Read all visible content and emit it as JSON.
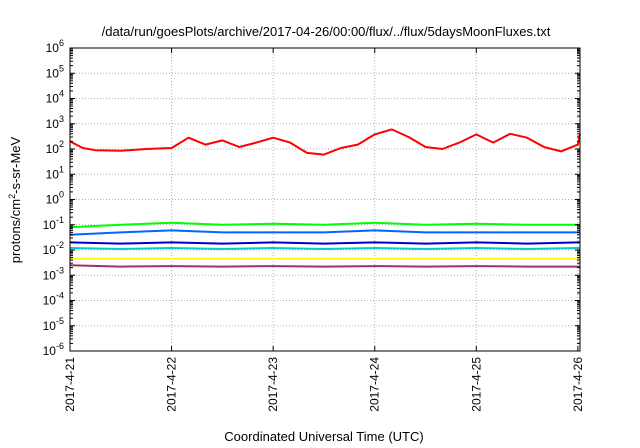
{
  "chart_data": {
    "type": "line",
    "title": "/data/run/goesPlots/archive/2017-04-26/00:00/flux/../flux/5daysMoonFluxes.txt",
    "xlabel": "Coordinated Universal Time (UTC)",
    "ylabel": {
      "prefix": "protons/cm",
      "superscript": "2",
      "suffix": "-s-sr-MeV"
    },
    "x_scale": "time",
    "xlim": [
      "2017-04-21",
      "2017-04-26 00:30"
    ],
    "x_ticks": [
      "2017-4-21",
      "2017-4-22",
      "2017-4-23",
      "2017-4-24",
      "2017-4-25",
      "2017-4-26"
    ],
    "y_scale": "log",
    "ylim": [
      1e-06,
      1000000.0
    ],
    "y_ticks": [
      {
        "base": "10",
        "exp": "-6"
      },
      {
        "base": "10",
        "exp": "-5"
      },
      {
        "base": "10",
        "exp": "-4"
      },
      {
        "base": "10",
        "exp": "-3"
      },
      {
        "base": "10",
        "exp": "-2"
      },
      {
        "base": "10",
        "exp": "-1"
      },
      {
        "base": "10",
        "exp": "0"
      },
      {
        "base": "10",
        "exp": "1"
      },
      {
        "base": "10",
        "exp": "2"
      },
      {
        "base": "10",
        "exp": "3"
      },
      {
        "base": "10",
        "exp": "4"
      },
      {
        "base": "10",
        "exp": "5"
      },
      {
        "base": "10",
        "exp": "6"
      }
    ],
    "grid": true,
    "series": [
      {
        "color": "#ff0000",
        "x": [
          "2017-04-21 00:00",
          "2017-04-21 03:00",
          "2017-04-21 06:00",
          "2017-04-21 12:00",
          "2017-04-21 18:00",
          "2017-04-22 00:00",
          "2017-04-22 04:00",
          "2017-04-22 08:00",
          "2017-04-22 12:00",
          "2017-04-22 16:00",
          "2017-04-22 20:00",
          "2017-04-23 00:00",
          "2017-04-23 04:00",
          "2017-04-23 08:00",
          "2017-04-23 12:00",
          "2017-04-23 16:00",
          "2017-04-23 20:00",
          "2017-04-24 00:00",
          "2017-04-24 04:00",
          "2017-04-24 08:00",
          "2017-04-24 12:00",
          "2017-04-24 16:00",
          "2017-04-24 20:00",
          "2017-04-25 00:00",
          "2017-04-25 04:00",
          "2017-04-25 08:00",
          "2017-04-25 12:00",
          "2017-04-25 16:00",
          "2017-04-25 20:00",
          "2017-04-26 00:00",
          "2017-04-26 00:30"
        ],
        "y": [
          200,
          110,
          90,
          85,
          100,
          110,
          280,
          150,
          220,
          120,
          180,
          280,
          180,
          70,
          60,
          110,
          150,
          380,
          600,
          300,
          120,
          100,
          180,
          380,
          180,
          400,
          280,
          120,
          80,
          150,
          400
        ]
      },
      {
        "color": "#00ff00",
        "x": [
          "2017-04-21 00:00",
          "2017-04-21 12:00",
          "2017-04-22 00:00",
          "2017-04-22 12:00",
          "2017-04-23 00:00",
          "2017-04-23 12:00",
          "2017-04-24 00:00",
          "2017-04-24 12:00",
          "2017-04-25 00:00",
          "2017-04-25 12:00",
          "2017-04-26 00:00",
          "2017-04-26 00:30"
        ],
        "y": [
          0.08,
          0.1,
          0.12,
          0.1,
          0.11,
          0.1,
          0.12,
          0.1,
          0.11,
          0.1,
          0.1,
          0.1
        ]
      },
      {
        "color": "#0066ff",
        "x": [
          "2017-04-21 00:00",
          "2017-04-21 12:00",
          "2017-04-22 00:00",
          "2017-04-22 12:00",
          "2017-04-23 00:00",
          "2017-04-23 12:00",
          "2017-04-24 00:00",
          "2017-04-24 12:00",
          "2017-04-25 00:00",
          "2017-04-25 12:00",
          "2017-04-26 00:00",
          "2017-04-26 00:30"
        ],
        "y": [
          0.04,
          0.05,
          0.06,
          0.05,
          0.05,
          0.05,
          0.06,
          0.05,
          0.05,
          0.05,
          0.05,
          0.05
        ]
      },
      {
        "color": "#0000cc",
        "x": [
          "2017-04-21 00:00",
          "2017-04-21 12:00",
          "2017-04-22 00:00",
          "2017-04-22 12:00",
          "2017-04-23 00:00",
          "2017-04-23 12:00",
          "2017-04-24 00:00",
          "2017-04-24 12:00",
          "2017-04-25 00:00",
          "2017-04-25 12:00",
          "2017-04-26 00:00",
          "2017-04-26 00:30"
        ],
        "y": [
          0.02,
          0.018,
          0.02,
          0.018,
          0.02,
          0.018,
          0.02,
          0.018,
          0.02,
          0.018,
          0.02,
          0.02
        ]
      },
      {
        "color": "#00cccc",
        "x": [
          "2017-04-21 00:00",
          "2017-04-21 12:00",
          "2017-04-22 00:00",
          "2017-04-22 12:00",
          "2017-04-23 00:00",
          "2017-04-23 12:00",
          "2017-04-24 00:00",
          "2017-04-24 12:00",
          "2017-04-25 00:00",
          "2017-04-25 12:00",
          "2017-04-26 00:00",
          "2017-04-26 00:30"
        ],
        "y": [
          0.012,
          0.011,
          0.012,
          0.011,
          0.012,
          0.011,
          0.012,
          0.011,
          0.012,
          0.011,
          0.012,
          0.012
        ]
      },
      {
        "color": "#ffff00",
        "x": [
          "2017-04-21 00:00",
          "2017-04-21 12:00",
          "2017-04-22 00:00",
          "2017-04-22 12:00",
          "2017-04-23 00:00",
          "2017-04-23 12:00",
          "2017-04-24 00:00",
          "2017-04-24 12:00",
          "2017-04-25 00:00",
          "2017-04-25 12:00",
          "2017-04-26 00:00",
          "2017-04-26 00:30"
        ],
        "y": [
          0.0045,
          0.0045,
          0.0045,
          0.0045,
          0.0045,
          0.0045,
          0.0045,
          0.0045,
          0.0045,
          0.0045,
          0.0045,
          0.0045
        ]
      },
      {
        "color": "#993366",
        "x": [
          "2017-04-21 00:00",
          "2017-04-21 12:00",
          "2017-04-22 00:00",
          "2017-04-22 12:00",
          "2017-04-23 00:00",
          "2017-04-23 12:00",
          "2017-04-24 00:00",
          "2017-04-24 12:00",
          "2017-04-25 00:00",
          "2017-04-25 12:00",
          "2017-04-26 00:00",
          "2017-04-26 00:30"
        ],
        "y": [
          0.0025,
          0.0022,
          0.0023,
          0.0022,
          0.0023,
          0.0022,
          0.0023,
          0.0022,
          0.0023,
          0.0022,
          0.0022,
          0.0022
        ]
      }
    ]
  }
}
